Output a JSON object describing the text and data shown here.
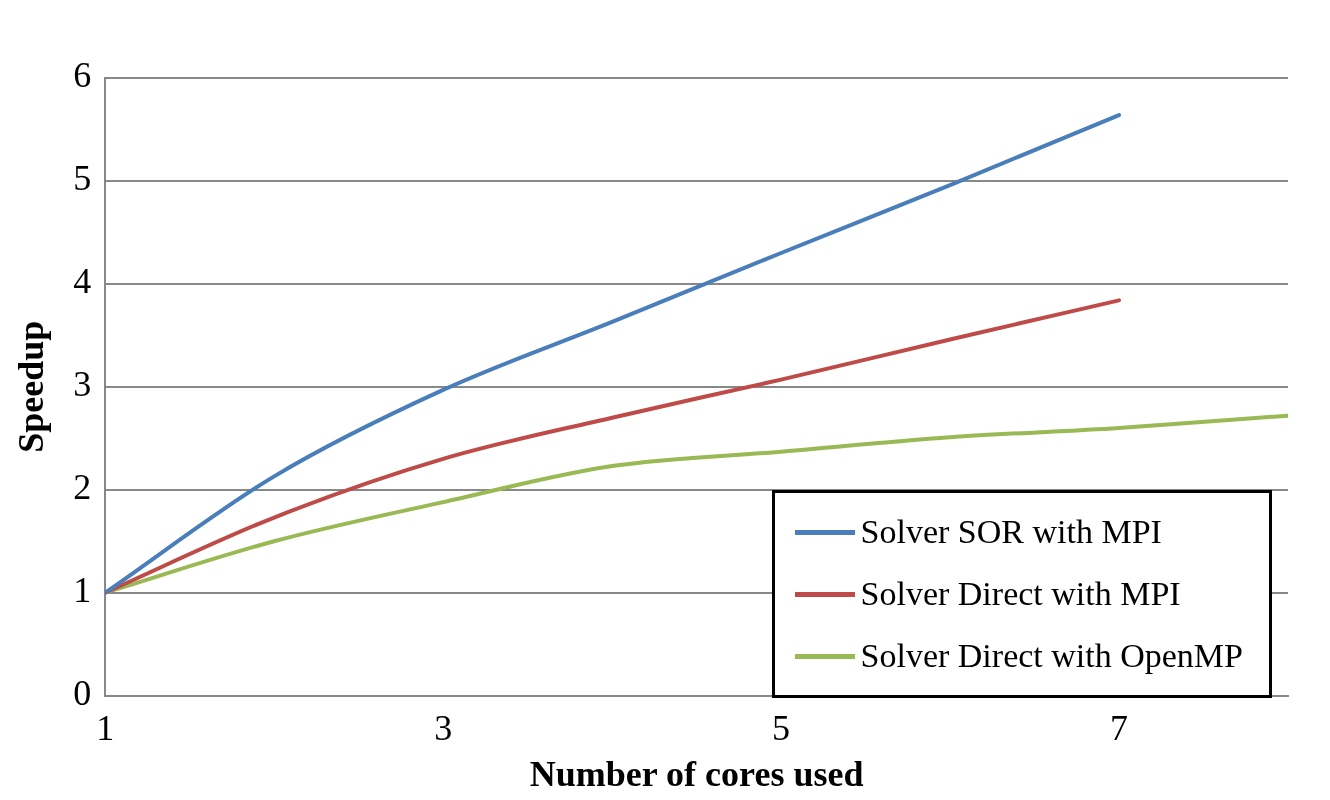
{
  "chart_data": {
    "type": "line",
    "xlabel": "Number of cores used",
    "ylabel": "Speedup",
    "x": [
      1,
      2,
      3,
      4,
      5,
      6,
      7,
      8
    ],
    "series": [
      {
        "name": "Solver SOR with MPI",
        "color": "#4a7ebb",
        "values": [
          1,
          2.13,
          2.97,
          3.63,
          4.3,
          4.96,
          5.64,
          null
        ]
      },
      {
        "name": "Solver Direct with MPI",
        "color": "#be4b48",
        "values": [
          1,
          1.73,
          2.3,
          2.7,
          3.07,
          3.46,
          3.84,
          null
        ]
      },
      {
        "name": "Solver Direct with OpenMP",
        "color": "#98b954",
        "values": [
          1,
          1.5,
          1.88,
          2.23,
          2.37,
          2.51,
          2.6,
          2.72
        ]
      }
    ],
    "xlim": [
      1,
      8
    ],
    "xticks": [
      1,
      3,
      5,
      7
    ],
    "ylim": [
      0,
      6
    ],
    "yticks": [
      0,
      1,
      2,
      3,
      4,
      5,
      6
    ],
    "grid": "y",
    "legend": "bottom right",
    "marker": "none",
    "line_style": "solid"
  }
}
